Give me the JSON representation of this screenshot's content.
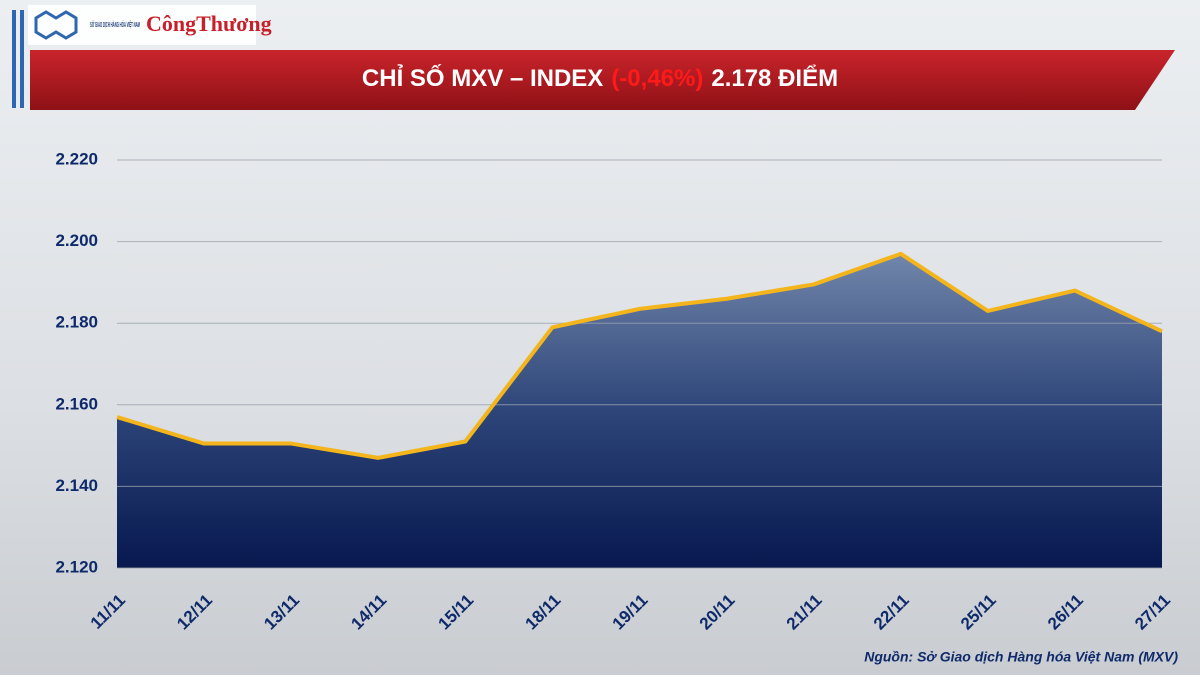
{
  "header": {
    "logo_org": "SỞ GIAO DỊCH HÀNG HÓA VIỆT NAM",
    "logo_paper": "CôngThương"
  },
  "chart_data": {
    "type": "area",
    "title": [
      "CHỈ SỐ MXV – INDEX",
      "(-0,46%)",
      "2.178 ĐIỂM"
    ],
    "title_colors": [
      "#ffffff",
      "#ff1a1a",
      "#ffffff"
    ],
    "categories": [
      "11/11",
      "12/11",
      "13/11",
      "14/11",
      "15/11",
      "18/11",
      "19/11",
      "20/11",
      "21/11",
      "22/11",
      "25/11",
      "26/11",
      "27/11"
    ],
    "series": [
      {
        "name": "MXV-Index",
        "color": "#f3b51b",
        "values": [
          2157,
          2150.5,
          2150.5,
          2147,
          2151,
          2179,
          2183.5,
          2186,
          2189.5,
          2197,
          2183,
          2188,
          2178
        ]
      }
    ],
    "ylim": [
      2120,
      2220
    ],
    "yticks": [
      {
        "value": 2120,
        "label": "2.120"
      },
      {
        "value": 2140,
        "label": "2.140"
      },
      {
        "value": 2160,
        "label": "2.160"
      },
      {
        "value": 2180,
        "label": "2.180"
      },
      {
        "value": 2200,
        "label": "2.200"
      },
      {
        "value": 2220,
        "label": "2.220"
      }
    ],
    "grid": true,
    "source": "Nguồn: Sở Giao dịch Hàng hóa Việt Nam (MXV)"
  }
}
